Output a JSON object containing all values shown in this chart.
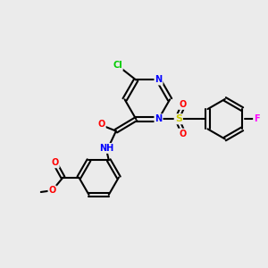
{
  "background_color": "#ebebeb",
  "bond_color": "#000000",
  "atom_colors": {
    "Cl": "#00cc00",
    "N": "#0000ff",
    "O": "#ff0000",
    "S": "#cccc00",
    "F": "#ff00ff",
    "C": "#000000",
    "H": "#000000"
  },
  "title": "",
  "figsize": [
    3.0,
    3.0
  ],
  "dpi": 100
}
